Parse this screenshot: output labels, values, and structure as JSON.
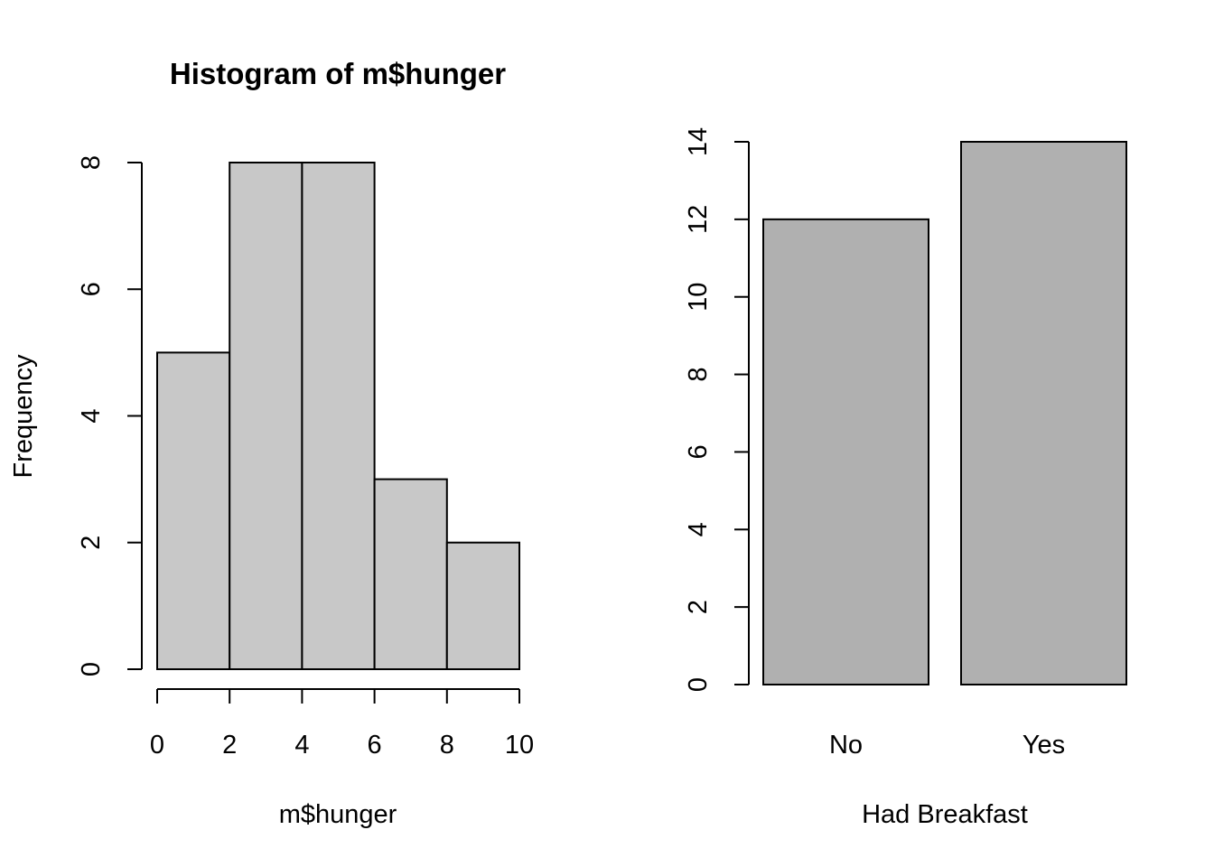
{
  "chart_data": [
    {
      "type": "bar",
      "subtype": "histogram",
      "title": "Histogram of m$hunger",
      "xlabel": "m$hunger",
      "ylabel": "Frequency",
      "bins": [
        [
          0,
          2
        ],
        [
          2,
          4
        ],
        [
          4,
          6
        ],
        [
          6,
          8
        ],
        [
          8,
          10
        ]
      ],
      "values": [
        5,
        8,
        8,
        3,
        2
      ],
      "x_ticks": [
        "0",
        "2",
        "4",
        "6",
        "8",
        "10"
      ],
      "y_ticks": [
        "0",
        "2",
        "4",
        "6",
        "8"
      ],
      "xlim": [
        0,
        10
      ],
      "ylim": [
        0,
        8
      ],
      "color": "#c8c8c8",
      "grid": false
    },
    {
      "type": "bar",
      "title": "",
      "xlabel": "Had Breakfast",
      "ylabel": "",
      "categories": [
        "No",
        "Yes"
      ],
      "values": [
        12,
        14
      ],
      "y_ticks": [
        "0",
        "2",
        "4",
        "6",
        "8",
        "10",
        "12",
        "14"
      ],
      "ylim": [
        0,
        14
      ],
      "color": "#b0b0b0",
      "grid": false
    }
  ]
}
